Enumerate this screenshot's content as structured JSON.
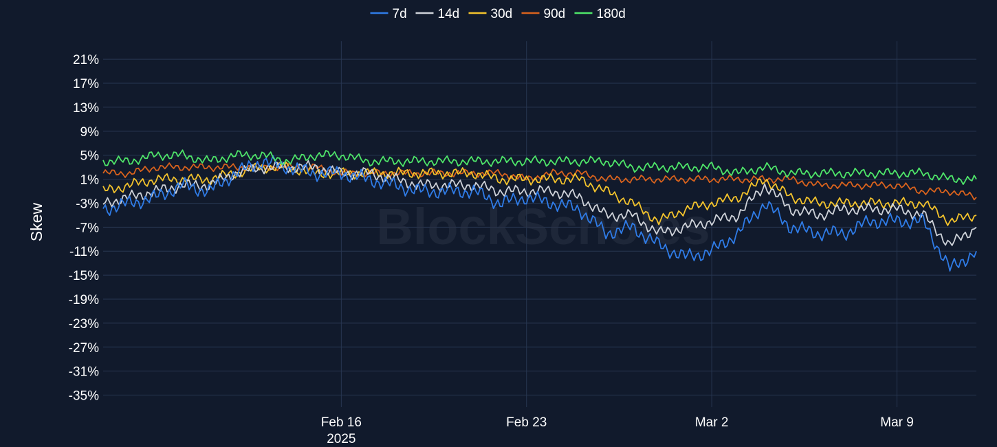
{
  "chart_data": {
    "type": "line",
    "title": "",
    "ylabel": "Skew",
    "xlabel": "",
    "watermark": "BlockScholes",
    "ylim": [
      -37,
      24
    ],
    "yticks": [
      21,
      17,
      13,
      9,
      5,
      1,
      -3,
      -7,
      -11,
      -15,
      -19,
      -23,
      -27,
      -31,
      -35
    ],
    "ytick_labels": [
      "21%",
      "17%",
      "13%",
      "9%",
      "5%",
      "1%",
      "-3%",
      "-7%",
      "-11%",
      "-15%",
      "-19%",
      "-23%",
      "-27%",
      "-31%",
      "-35%"
    ],
    "xlim": [
      "2025-02-07",
      "2025-03-12"
    ],
    "xticks": [
      "2025-02-16",
      "2025-02-23",
      "2025-03-02",
      "2025-03-09"
    ],
    "xtick_labels": [
      "Feb 16",
      "Feb 23",
      "Mar 2",
      "Mar 9"
    ],
    "xtick_year": "2025",
    "legend_position": "top-center",
    "grid": true,
    "colors": {
      "background": "#111a2c",
      "grid": "#283752"
    },
    "series": [
      {
        "name": "7d",
        "color": "#2f7be6",
        "x": [
          "2025-02-07",
          "2025-02-08",
          "2025-02-09",
          "2025-02-10",
          "2025-02-11",
          "2025-02-12",
          "2025-02-13",
          "2025-02-14",
          "2025-02-15",
          "2025-02-16",
          "2025-02-17",
          "2025-02-18",
          "2025-02-19",
          "2025-02-20",
          "2025-02-21",
          "2025-02-22",
          "2025-02-23",
          "2025-02-24",
          "2025-02-25",
          "2025-02-26",
          "2025-02-27",
          "2025-02-28",
          "2025-03-01",
          "2025-03-02",
          "2025-03-03",
          "2025-03-04",
          "2025-03-05",
          "2025-03-06",
          "2025-03-07",
          "2025-03-08",
          "2025-03-09",
          "2025-03-10",
          "2025-03-11",
          "2025-03-12"
        ],
        "values": [
          -4,
          -3,
          -2,
          0,
          -1,
          2,
          4,
          3,
          2,
          2,
          1,
          0,
          -1,
          -1,
          -1,
          -3,
          -2,
          -3,
          -4,
          -8,
          -7,
          -10,
          -12,
          -11,
          -8,
          -3,
          -7,
          -8,
          -8,
          -6,
          -6,
          -6,
          -14,
          -11
        ]
      },
      {
        "name": "14d",
        "color": "#cdd1d8",
        "x": [
          "2025-02-07",
          "2025-02-08",
          "2025-02-09",
          "2025-02-10",
          "2025-02-11",
          "2025-02-12",
          "2025-02-13",
          "2025-02-14",
          "2025-02-15",
          "2025-02-16",
          "2025-02-17",
          "2025-02-18",
          "2025-02-19",
          "2025-02-20",
          "2025-02-21",
          "2025-02-22",
          "2025-02-23",
          "2025-02-24",
          "2025-02-25",
          "2025-02-26",
          "2025-02-27",
          "2025-02-28",
          "2025-03-01",
          "2025-03-02",
          "2025-03-03",
          "2025-03-04",
          "2025-03-05",
          "2025-03-06",
          "2025-03-07",
          "2025-03-08",
          "2025-03-09",
          "2025-03-10",
          "2025-03-11",
          "2025-03-12"
        ],
        "values": [
          -3,
          -2,
          -1,
          0,
          0,
          2,
          3,
          3,
          3,
          2,
          2,
          1,
          0,
          0,
          0,
          -1,
          -1,
          -1,
          -2,
          -5,
          -5,
          -8,
          -7,
          -6,
          -5,
          0,
          -4,
          -5,
          -4,
          -4,
          -4,
          -5,
          -10,
          -7
        ]
      },
      {
        "name": "30d",
        "color": "#f2c22c",
        "x": [
          "2025-02-07",
          "2025-02-08",
          "2025-02-09",
          "2025-02-10",
          "2025-02-11",
          "2025-02-12",
          "2025-02-13",
          "2025-02-14",
          "2025-02-15",
          "2025-02-16",
          "2025-02-17",
          "2025-02-18",
          "2025-02-19",
          "2025-02-20",
          "2025-02-21",
          "2025-02-22",
          "2025-02-23",
          "2025-02-24",
          "2025-02-25",
          "2025-02-26",
          "2025-02-27",
          "2025-02-28",
          "2025-03-01",
          "2025-03-02",
          "2025-03-03",
          "2025-03-04",
          "2025-03-05",
          "2025-03-06",
          "2025-03-07",
          "2025-03-08",
          "2025-03-09",
          "2025-03-10",
          "2025-03-11",
          "2025-03-12"
        ],
        "values": [
          -1,
          0,
          1,
          1,
          1,
          2,
          3,
          3,
          2,
          2,
          2,
          2,
          2,
          2,
          2,
          1,
          1,
          1,
          1,
          -1,
          -3,
          -6,
          -4,
          -3,
          -2,
          1,
          -2,
          -3,
          -3,
          -3,
          -3,
          -3,
          -6,
          -5
        ]
      },
      {
        "name": "90d",
        "color": "#d8621d",
        "x": [
          "2025-02-07",
          "2025-02-08",
          "2025-02-09",
          "2025-02-10",
          "2025-02-11",
          "2025-02-12",
          "2025-02-13",
          "2025-02-14",
          "2025-02-15",
          "2025-02-16",
          "2025-02-17",
          "2025-02-18",
          "2025-02-19",
          "2025-02-20",
          "2025-02-21",
          "2025-02-22",
          "2025-02-23",
          "2025-02-24",
          "2025-02-25",
          "2025-02-26",
          "2025-02-27",
          "2025-02-28",
          "2025-03-01",
          "2025-03-02",
          "2025-03-03",
          "2025-03-04",
          "2025-03-05",
          "2025-03-06",
          "2025-03-07",
          "2025-03-08",
          "2025-03-09",
          "2025-03-10",
          "2025-03-11",
          "2025-03-12"
        ],
        "values": [
          2,
          2,
          3,
          3,
          3,
          3,
          3,
          3,
          3,
          2,
          2,
          2,
          2,
          2,
          2,
          2,
          1,
          2,
          2,
          1,
          1,
          1,
          1,
          1,
          1,
          1,
          1,
          0,
          0,
          0,
          0,
          -1,
          -1,
          -2
        ]
      },
      {
        "name": "180d",
        "color": "#4ee569",
        "x": [
          "2025-02-07",
          "2025-02-08",
          "2025-02-09",
          "2025-02-10",
          "2025-02-11",
          "2025-02-12",
          "2025-02-13",
          "2025-02-14",
          "2025-02-15",
          "2025-02-16",
          "2025-02-17",
          "2025-02-18",
          "2025-02-19",
          "2025-02-20",
          "2025-02-21",
          "2025-02-22",
          "2025-02-23",
          "2025-02-24",
          "2025-02-25",
          "2025-02-26",
          "2025-02-27",
          "2025-02-28",
          "2025-03-01",
          "2025-03-02",
          "2025-03-03",
          "2025-03-04",
          "2025-03-05",
          "2025-03-06",
          "2025-03-07",
          "2025-03-08",
          "2025-03-09",
          "2025-03-10",
          "2025-03-11",
          "2025-03-12"
        ],
        "values": [
          4,
          4,
          5,
          5,
          4,
          5,
          5,
          4,
          5,
          5,
          4,
          4,
          4,
          4,
          4,
          4,
          4,
          4,
          4,
          4,
          3,
          3,
          3,
          3,
          2,
          3,
          2,
          2,
          2,
          2,
          2,
          2,
          1,
          1
        ]
      }
    ]
  }
}
